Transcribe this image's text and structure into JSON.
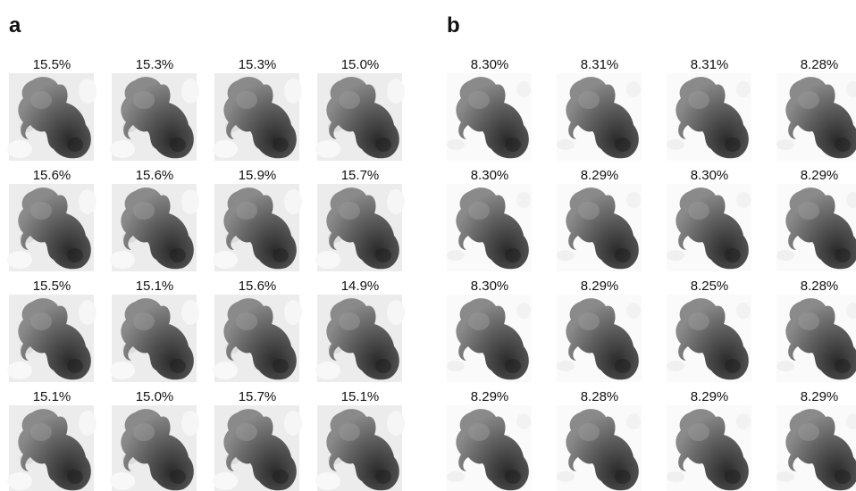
{
  "panels": [
    {
      "label": "a",
      "rows": [
        [
          "15.5%",
          "15.3%",
          "15.3%",
          "15.0%"
        ],
        [
          "15.6%",
          "15.6%",
          "15.9%",
          "15.7%"
        ],
        [
          "15.5%",
          "15.1%",
          "15.6%",
          "14.9%"
        ],
        [
          "15.1%",
          "15.0%",
          "15.7%",
          "15.1%"
        ]
      ]
    },
    {
      "label": "b",
      "rows": [
        [
          "8.30%",
          "8.31%",
          "8.31%",
          "8.28%"
        ],
        [
          "8.30%",
          "8.29%",
          "8.30%",
          "8.29%"
        ],
        [
          "8.30%",
          "8.29%",
          "8.25%",
          "8.28%"
        ],
        [
          "8.29%",
          "8.28%",
          "8.29%",
          "8.29%"
        ]
      ]
    }
  ]
}
